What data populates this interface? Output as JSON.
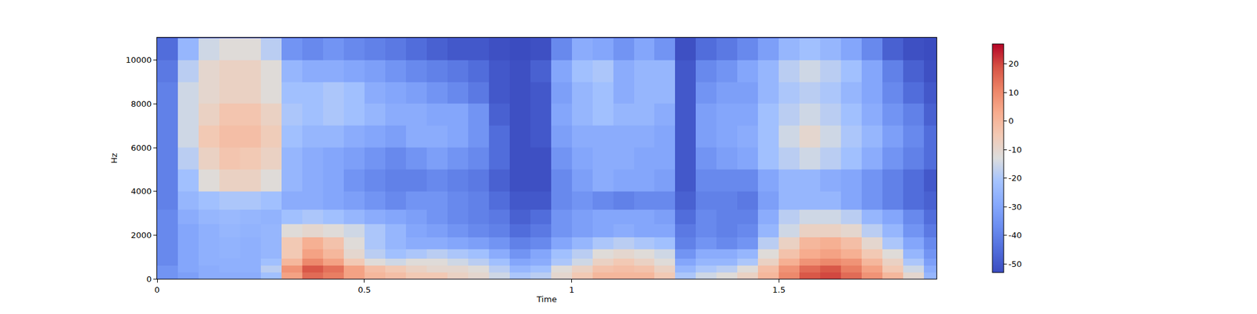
{
  "chart_data": {
    "type": "heatmap",
    "xlabel": "Time",
    "ylabel": "Hz",
    "x": [
      0.025,
      0.075,
      0.125,
      0.175,
      0.225,
      0.275,
      0.325,
      0.375,
      0.425,
      0.475,
      0.525,
      0.575,
      0.625,
      0.675,
      0.725,
      0.775,
      0.825,
      0.875,
      0.925,
      0.975,
      1.025,
      1.075,
      1.125,
      1.175,
      1.225,
      1.275,
      1.325,
      1.375,
      1.425,
      1.475,
      1.525,
      1.575,
      1.625,
      1.675,
      1.725,
      1.775,
      1.825,
      1.875
    ],
    "y": [
      150,
      450,
      750,
      1100,
      1600,
      2200,
      2800,
      3500,
      4500,
      5500,
      6500,
      7500,
      8500,
      9500,
      10500
    ],
    "z": [
      [
        -35,
        -32,
        -28,
        -28,
        -28,
        -22,
        5,
        15,
        12,
        5,
        0,
        -2,
        -5,
        -5,
        -8,
        -10,
        -15,
        -20,
        -18,
        -10,
        -5,
        0,
        0,
        0,
        -5,
        -20,
        -15,
        -12,
        -8,
        0,
        10,
        18,
        20,
        15,
        8,
        0,
        -10,
        -25
      ],
      [
        -35,
        -30,
        -28,
        -27,
        -27,
        -18,
        8,
        18,
        14,
        5,
        -2,
        -5,
        -8,
        -10,
        -10,
        -12,
        -18,
        -25,
        -22,
        -12,
        -8,
        -3,
        -2,
        -3,
        -8,
        -25,
        -20,
        -18,
        -12,
        -2,
        8,
        15,
        18,
        12,
        5,
        -5,
        -15,
        -28
      ],
      [
        -38,
        -30,
        -27,
        -27,
        -27,
        -22,
        0,
        10,
        5,
        -5,
        -12,
        -15,
        -12,
        -12,
        -15,
        -18,
        -22,
        -30,
        -28,
        -20,
        -15,
        -8,
        -5,
        -8,
        -12,
        -30,
        -25,
        -25,
        -20,
        -8,
        2,
        8,
        10,
        8,
        0,
        -8,
        -20,
        -32
      ],
      [
        -38,
        -30,
        -27,
        -26,
        -27,
        -25,
        -5,
        5,
        0,
        -10,
        -18,
        -22,
        -20,
        -18,
        -20,
        -22,
        -28,
        -35,
        -30,
        -22,
        -18,
        -12,
        -10,
        -12,
        -15,
        -35,
        -28,
        -28,
        -25,
        -12,
        -3,
        3,
        5,
        2,
        -5,
        -12,
        -25,
        -35
      ],
      [
        -38,
        -30,
        -27,
        -26,
        -27,
        -25,
        -5,
        2,
        -3,
        -12,
        -20,
        -25,
        -28,
        -28,
        -30,
        -32,
        -35,
        -40,
        -38,
        -30,
        -25,
        -20,
        -18,
        -20,
        -22,
        -40,
        -35,
        -38,
        -35,
        -18,
        -8,
        0,
        2,
        -2,
        -10,
        -20,
        -30,
        -38
      ],
      [
        -38,
        -30,
        -27,
        -25,
        -26,
        -25,
        -12,
        -10,
        -12,
        -15,
        -20,
        -25,
        -30,
        -32,
        -35,
        -38,
        -40,
        -45,
        -42,
        -35,
        -32,
        -30,
        -28,
        -30,
        -30,
        -42,
        -38,
        -40,
        -38,
        -25,
        -15,
        -8,
        -8,
        -10,
        -18,
        -25,
        -35,
        -42
      ],
      [
        -38,
        -28,
        -25,
        -24,
        -25,
        -26,
        -22,
        -20,
        -22,
        -25,
        -28,
        -30,
        -32,
        -35,
        -38,
        -40,
        -42,
        -48,
        -45,
        -35,
        -32,
        -30,
        -30,
        -30,
        -32,
        -45,
        -38,
        -40,
        -40,
        -28,
        -18,
        -15,
        -15,
        -18,
        -25,
        -30,
        -38,
        -45
      ],
      [
        -40,
        -25,
        -22,
        -20,
        -20,
        -22,
        -28,
        -28,
        -30,
        -32,
        -35,
        -38,
        -35,
        -35,
        -38,
        -40,
        -45,
        -50,
        -50,
        -38,
        -35,
        -38,
        -40,
        -38,
        -38,
        -48,
        -40,
        -40,
        -42,
        -32,
        -25,
        -25,
        -25,
        -30,
        -35,
        -40,
        -45,
        -48
      ],
      [
        -40,
        -22,
        -12,
        -8,
        -8,
        -12,
        -25,
        -28,
        -30,
        -35,
        -38,
        -40,
        -40,
        -38,
        -40,
        -42,
        -48,
        -52,
        -52,
        -38,
        -32,
        -28,
        -30,
        -30,
        -32,
        -50,
        -38,
        -38,
        -38,
        -30,
        -25,
        -25,
        -28,
        -30,
        -35,
        -40,
        -45,
        -50
      ],
      [
        -40,
        -18,
        -8,
        -4,
        -5,
        -8,
        -25,
        -28,
        -30,
        -32,
        -35,
        -38,
        -35,
        -32,
        -35,
        -38,
        -45,
        -52,
        -52,
        -35,
        -30,
        -28,
        -28,
        -30,
        -30,
        -50,
        -35,
        -32,
        -30,
        -22,
        -18,
        -15,
        -18,
        -22,
        -28,
        -35,
        -40,
        -45
      ],
      [
        -40,
        -15,
        -5,
        -2,
        -2,
        -6,
        -22,
        -25,
        -25,
        -28,
        -30,
        -32,
        -28,
        -28,
        -30,
        -35,
        -45,
        -52,
        -50,
        -32,
        -28,
        -28,
        -28,
        -28,
        -30,
        -50,
        -32,
        -30,
        -28,
        -22,
        -15,
        -10,
        -15,
        -20,
        -25,
        -32,
        -38,
        -45
      ],
      [
        -40,
        -15,
        -8,
        -4,
        -4,
        -8,
        -20,
        -22,
        -20,
        -22,
        -25,
        -28,
        -28,
        -30,
        -30,
        -35,
        -48,
        -52,
        -50,
        -30,
        -25,
        -22,
        -25,
        -25,
        -28,
        -50,
        -32,
        -30,
        -30,
        -22,
        -18,
        -15,
        -18,
        -22,
        -28,
        -35,
        -40,
        -48
      ],
      [
        -40,
        -15,
        -10,
        -8,
        -8,
        -12,
        -22,
        -22,
        -20,
        -22,
        -28,
        -30,
        -32,
        -35,
        -38,
        -42,
        -50,
        -52,
        -50,
        -32,
        -25,
        -22,
        -28,
        -25,
        -25,
        -50,
        -35,
        -32,
        -32,
        -25,
        -20,
        -18,
        -20,
        -25,
        -30,
        -38,
        -45,
        -50
      ],
      [
        -42,
        -18,
        -10,
        -8,
        -8,
        -12,
        -25,
        -28,
        -28,
        -30,
        -32,
        -35,
        -38,
        -40,
        -42,
        -45,
        -50,
        -52,
        -48,
        -30,
        -22,
        -20,
        -28,
        -25,
        -25,
        -50,
        -38,
        -35,
        -30,
        -25,
        -18,
        -15,
        -18,
        -22,
        -30,
        -40,
        -48,
        -52
      ],
      [
        -45,
        -25,
        -15,
        -12,
        -12,
        -18,
        -35,
        -38,
        -35,
        -38,
        -40,
        -42,
        -45,
        -48,
        -50,
        -50,
        -52,
        -53,
        -52,
        -38,
        -28,
        -30,
        -35,
        -30,
        -35,
        -52,
        -45,
        -42,
        -38,
        -32,
        -25,
        -22,
        -25,
        -30,
        -38,
        -48,
        -52,
        -53
      ]
    ],
    "xlim": [
      0,
      1.88
    ],
    "ylim": [
      0,
      11025
    ],
    "xticks": [
      0,
      0.5,
      1,
      1.5
    ],
    "yticks": [
      0,
      2000,
      4000,
      6000,
      8000,
      10000
    ],
    "zlim": [
      -53,
      27
    ],
    "zticks": [
      -50,
      -40,
      -30,
      -20,
      -10,
      0,
      10,
      20
    ]
  }
}
